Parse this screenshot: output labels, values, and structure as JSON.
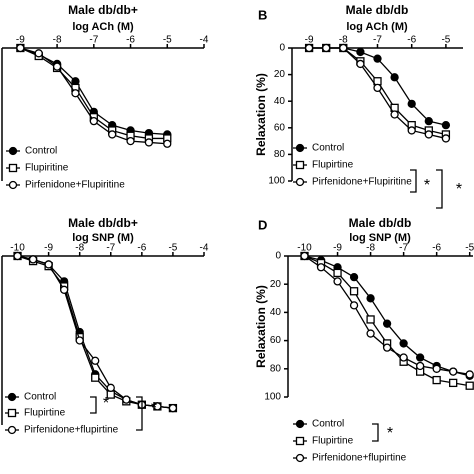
{
  "chart_data": [
    {
      "type": "line",
      "title": "Male db/db+",
      "xlabel": "log ACh (M)",
      "x": [
        -9,
        -8.5,
        -8,
        -7.5,
        -7,
        -6.5,
        -6,
        -5.5,
        -5
      ],
      "series": [
        {
          "name": "Control",
          "color": "#000000",
          "marker": "circle-filled",
          "values": [
            0,
            5,
            12,
            25,
            48,
            58,
            62,
            64,
            65
          ]
        },
        {
          "name": "Flupiritine",
          "color": "#000000",
          "marker": "square-open",
          "values": [
            0,
            6,
            15,
            30,
            52,
            62,
            66,
            68,
            68
          ]
        },
        {
          "name": "Pirfenidone+Flupiritine",
          "color": "#000000",
          "marker": "circle-open",
          "values": [
            0,
            4,
            14,
            34,
            55,
            65,
            70,
            71,
            72
          ]
        }
      ],
      "xlim": [
        -9.5,
        -4
      ],
      "xticks": [
        -9,
        -8,
        -7,
        -6,
        -5,
        -4
      ],
      "ylim": [
        0,
        100
      ]
    },
    {
      "type": "line",
      "panel_label": "B",
      "title": "Male db/db",
      "xlabel": "log ACh (M)",
      "ylabel": "Relaxation (%)",
      "x": [
        -9,
        -8.5,
        -8,
        -7.5,
        -7,
        -6.5,
        -6,
        -5.5,
        -5
      ],
      "series": [
        {
          "name": "Control",
          "color": "#000000",
          "marker": "circle-filled",
          "values": [
            0,
            0,
            0,
            3,
            8,
            22,
            42,
            55,
            58
          ]
        },
        {
          "name": "Flupirtine",
          "color": "#000000",
          "marker": "square-open",
          "values": [
            0,
            0,
            0,
            10,
            25,
            45,
            58,
            62,
            65
          ]
        },
        {
          "name": "Pirfenidone+Flupiritine",
          "color": "#000000",
          "marker": "circle-open",
          "values": [
            0,
            0,
            0,
            12,
            30,
            50,
            62,
            65,
            68
          ]
        }
      ],
      "xlim": [
        -9.5,
        -4.5
      ],
      "xticks": [
        -9,
        -8,
        -7,
        -6,
        -5
      ],
      "ylim": [
        0,
        100
      ],
      "yticks": [
        0,
        20,
        40,
        60,
        80,
        100
      ],
      "annotations": [
        "*",
        "*"
      ]
    },
    {
      "type": "line",
      "title": "Male db/db+",
      "xlabel": "log SNP (M)",
      "x": [
        -10,
        -9.5,
        -9,
        -8.5,
        -8,
        -7.5,
        -7,
        -6.5,
        -6,
        -5.5,
        -5
      ],
      "series": [
        {
          "name": "Control",
          "color": "#000000",
          "marker": "circle-filled",
          "values": [
            0,
            2,
            5,
            15,
            45,
            70,
            80,
            85,
            88,
            89,
            90
          ]
        },
        {
          "name": "Flupirtine",
          "color": "#000000",
          "marker": "square-open",
          "values": [
            0,
            3,
            6,
            18,
            48,
            72,
            82,
            86,
            88,
            89,
            90
          ]
        },
        {
          "name": "Pirfenidone+flupirtine",
          "color": "#000000",
          "marker": "circle-open",
          "values": [
            0,
            2,
            5,
            20,
            50,
            62,
            78,
            85,
            88,
            89,
            90
          ]
        }
      ],
      "xlim": [
        -10.5,
        -4
      ],
      "xticks": [
        -10,
        -9,
        -8,
        -7,
        -6,
        -5,
        -4
      ],
      "ylim": [
        0,
        100
      ],
      "annotations": [
        "*",
        "*"
      ]
    },
    {
      "type": "line",
      "panel_label": "D",
      "title": "Male db/db",
      "xlabel": "log SNP (M)",
      "ylabel": "Relaxation (%)",
      "x": [
        -10,
        -9.5,
        -9,
        -8.5,
        -8,
        -7.5,
        -7,
        -6.5,
        -6,
        -5.5,
        -5
      ],
      "series": [
        {
          "name": "Control",
          "color": "#000000",
          "marker": "circle-filled",
          "values": [
            0,
            3,
            8,
            15,
            30,
            48,
            62,
            72,
            78,
            82,
            85
          ]
        },
        {
          "name": "Flupirtine",
          "color": "#000000",
          "marker": "square-open",
          "values": [
            0,
            5,
            12,
            25,
            45,
            62,
            75,
            82,
            88,
            90,
            92
          ]
        },
        {
          "name": "Pirfenidone+flupirtine",
          "color": "#000000",
          "marker": "circle-open",
          "values": [
            0,
            8,
            18,
            35,
            55,
            65,
            72,
            78,
            80,
            82,
            84
          ]
        }
      ],
      "xlim": [
        -10.5,
        -4.9
      ],
      "xticks": [
        -10,
        -9,
        -8,
        -7,
        -6,
        -5
      ],
      "ylim": [
        0,
        100
      ],
      "yticks": [
        0,
        20,
        40,
        60,
        80,
        100
      ],
      "annotations": [
        "*"
      ]
    }
  ]
}
